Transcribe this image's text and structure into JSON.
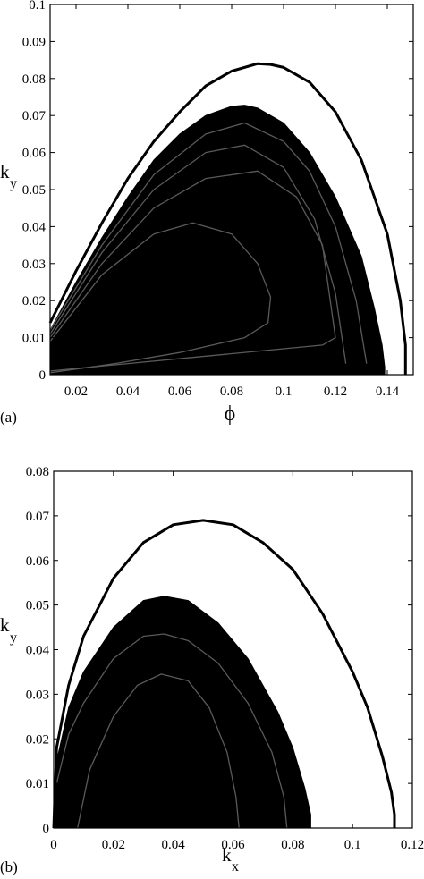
{
  "chart_data": [
    {
      "panel_label": "(a)",
      "type": "line",
      "xlabel": "ϕ",
      "ylabel_main": "k",
      "ylabel_sub": "y",
      "xlim": [
        0.01,
        0.15
      ],
      "ylim": [
        0,
        0.1
      ],
      "xticks": [
        0.02,
        0.04,
        0.06,
        0.08,
        0.1,
        0.12,
        0.14
      ],
      "xtick_labels": [
        "0.02",
        "0.04",
        "0.06",
        "0.08",
        "0.1",
        "0.12",
        "0.14"
      ],
      "yticks": [
        0,
        0.01,
        0.02,
        0.03,
        0.04,
        0.05,
        0.06,
        0.07,
        0.08,
        0.09,
        0.1
      ],
      "ytick_labels": [
        "0",
        "0.01",
        "0.02",
        "0.03",
        "0.04",
        "0.05",
        "0.06",
        "0.07",
        "0.08",
        "0.09",
        "0.1"
      ],
      "outer_curve": {
        "x": [
          0.01,
          0.02,
          0.03,
          0.04,
          0.05,
          0.06,
          0.07,
          0.08,
          0.09,
          0.095,
          0.1,
          0.11,
          0.12,
          0.13,
          0.14,
          0.145,
          0.147,
          0.147
        ],
        "y": [
          0.014,
          0.028,
          0.041,
          0.053,
          0.063,
          0.071,
          0.078,
          0.082,
          0.084,
          0.0838,
          0.083,
          0.079,
          0.071,
          0.058,
          0.038,
          0.02,
          0.008,
          0
        ]
      },
      "filled_region": {
        "x": [
          0.01,
          0.02,
          0.03,
          0.04,
          0.05,
          0.06,
          0.07,
          0.08,
          0.085,
          0.09,
          0.1,
          0.11,
          0.12,
          0.13,
          0.135,
          0.138,
          0.139,
          0.139
        ],
        "y": [
          0.012,
          0.025,
          0.037,
          0.048,
          0.058,
          0.065,
          0.07,
          0.0725,
          0.0728,
          0.072,
          0.068,
          0.06,
          0.048,
          0.032,
          0.018,
          0.008,
          0.002,
          0
        ]
      },
      "inner_contours": [
        {
          "x": [
            0.01,
            0.03,
            0.05,
            0.07,
            0.085,
            0.1,
            0.11,
            0.12,
            0.128,
            0.132
          ],
          "y": [
            0.012,
            0.035,
            0.054,
            0.065,
            0.068,
            0.063,
            0.055,
            0.04,
            0.02,
            0.003
          ]
        },
        {
          "x": [
            0.01,
            0.03,
            0.05,
            0.07,
            0.085,
            0.1,
            0.112,
            0.12,
            0.124
          ],
          "y": [
            0.011,
            0.033,
            0.05,
            0.06,
            0.062,
            0.056,
            0.042,
            0.022,
            0.003
          ]
        },
        {
          "x": [
            0.01,
            0.03,
            0.05,
            0.07,
            0.09,
            0.105,
            0.115,
            0.118,
            0.12,
            0.115,
            0.1,
            0.07,
            0.04,
            0.01
          ],
          "y": [
            0.01,
            0.03,
            0.045,
            0.053,
            0.055,
            0.048,
            0.035,
            0.02,
            0.01,
            0.008,
            0.007,
            0.005,
            0.003,
            0.001
          ]
        },
        {
          "x": [
            0.01,
            0.03,
            0.05,
            0.065,
            0.08,
            0.09,
            0.095,
            0.094,
            0.085,
            0.06,
            0.035,
            0.01
          ],
          "y": [
            0.009,
            0.027,
            0.038,
            0.041,
            0.038,
            0.03,
            0.021,
            0.014,
            0.01,
            0.006,
            0.003,
            0.0005
          ]
        }
      ]
    },
    {
      "panel_label": "(b)",
      "type": "line",
      "xlabel_main": "k",
      "xlabel_sub": "x",
      "ylabel_main": "k",
      "ylabel_sub": "y",
      "xlim": [
        0,
        0.12
      ],
      "ylim": [
        0,
        0.08
      ],
      "xticks": [
        0,
        0.02,
        0.04,
        0.06,
        0.08,
        0.1,
        0.12
      ],
      "xtick_labels": [
        "0",
        "0.02",
        "0.04",
        "0.06",
        "0.08",
        "0.1",
        "0.12"
      ],
      "yticks": [
        0,
        0.01,
        0.02,
        0.03,
        0.04,
        0.05,
        0.06,
        0.07,
        0.08
      ],
      "ytick_labels": [
        "0",
        "0.01",
        "0.02",
        "0.03",
        "0.04",
        "0.05",
        "0.06",
        "0.07",
        "0.08"
      ],
      "outer_curve": {
        "x": [
          0,
          0.001,
          0.005,
          0.01,
          0.02,
          0.03,
          0.04,
          0.05,
          0.06,
          0.07,
          0.08,
          0.09,
          0.1,
          0.105,
          0.11,
          0.113,
          0.114,
          0.114
        ],
        "y": [
          0,
          0.018,
          0.032,
          0.043,
          0.056,
          0.064,
          0.068,
          0.069,
          0.068,
          0.064,
          0.058,
          0.048,
          0.035,
          0.027,
          0.016,
          0.008,
          0.003,
          0
        ]
      },
      "filled_region": {
        "x": [
          0,
          0.001,
          0.005,
          0.01,
          0.02,
          0.03,
          0.037,
          0.045,
          0.055,
          0.065,
          0.075,
          0.08,
          0.084,
          0.086,
          0.086
        ],
        "y": [
          0,
          0.015,
          0.027,
          0.035,
          0.045,
          0.051,
          0.052,
          0.051,
          0.046,
          0.038,
          0.026,
          0.018,
          0.009,
          0.003,
          0
        ]
      },
      "inner_contours": [
        {
          "x": [
            0.001,
            0.005,
            0.01,
            0.02,
            0.03,
            0.037,
            0.045,
            0.055,
            0.065,
            0.073,
            0.077,
            0.078
          ],
          "y": [
            0.01,
            0.021,
            0.028,
            0.038,
            0.043,
            0.0435,
            0.042,
            0.037,
            0.028,
            0.017,
            0.007,
            0
          ]
        },
        {
          "x": [
            0.008,
            0.012,
            0.02,
            0.028,
            0.036,
            0.045,
            0.052,
            0.058,
            0.061,
            0.062
          ],
          "y": [
            0,
            0.013,
            0.025,
            0.032,
            0.0345,
            0.033,
            0.027,
            0.017,
            0.007,
            0
          ]
        }
      ]
    }
  ]
}
